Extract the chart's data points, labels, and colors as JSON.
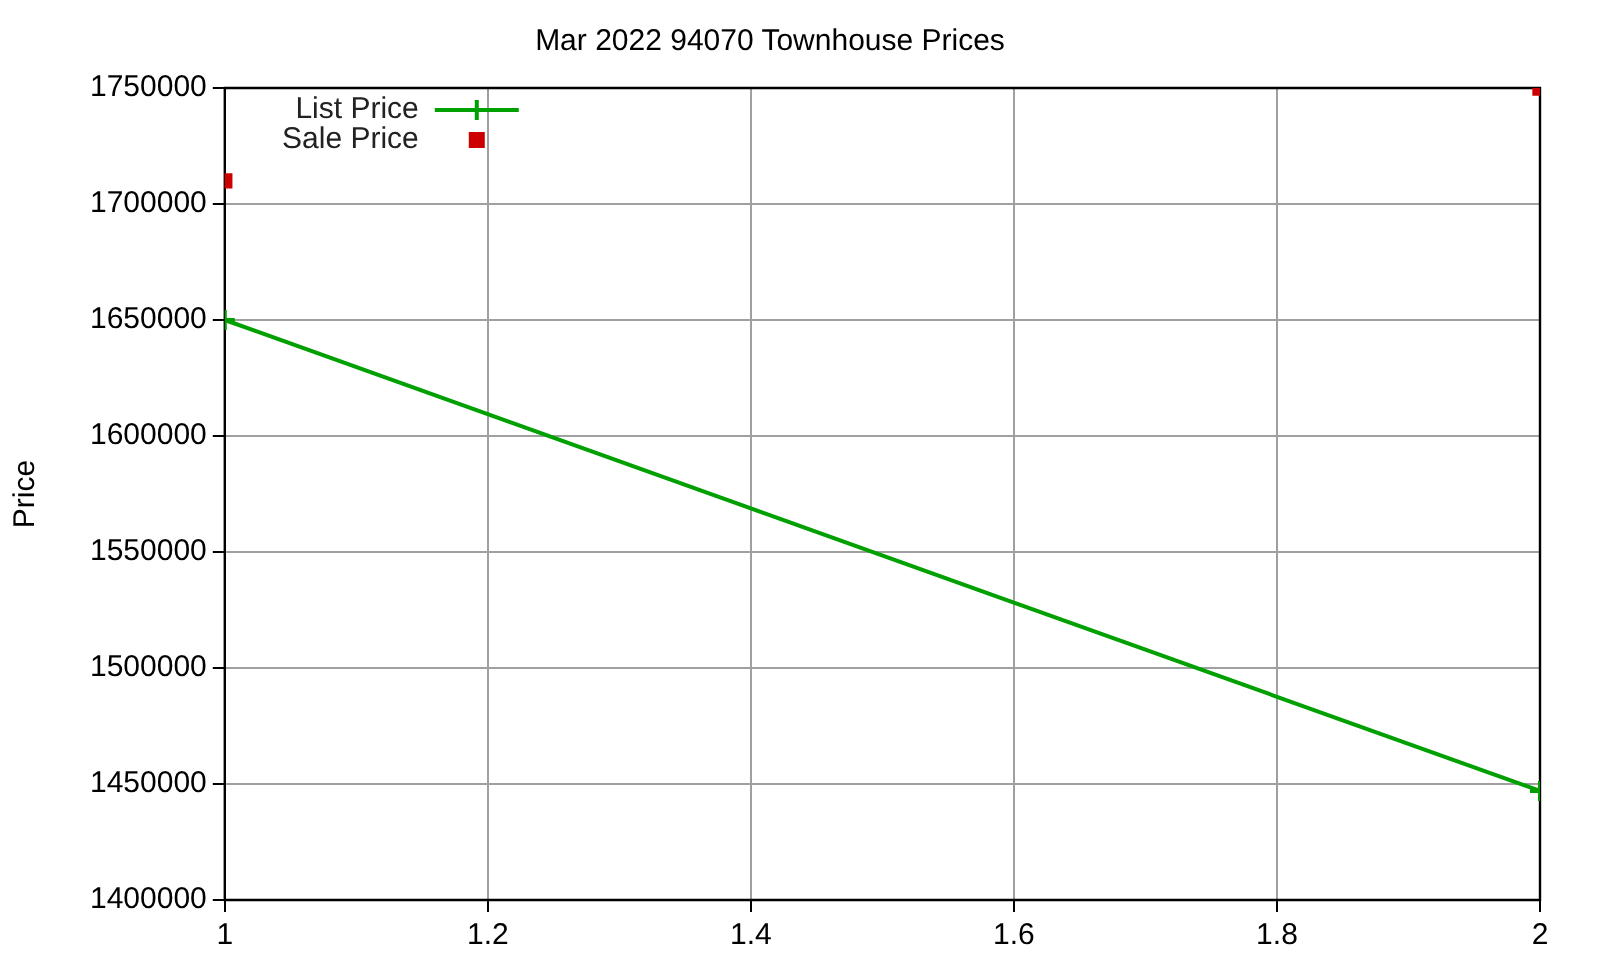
{
  "chart_data": {
    "type": "line",
    "title": "Mar 2022 94070 Townhouse Prices",
    "ylabel": "Price",
    "x": [
      1,
      2
    ],
    "series": [
      {
        "name": "List Price",
        "color": "#00a000",
        "values": [
          1650000,
          1447000
        ],
        "marker": "cross"
      },
      {
        "name": "Sale Price",
        "type": "scatter",
        "color": "#cc0000",
        "values": [
          1710000,
          1750000
        ],
        "marker": "square"
      }
    ],
    "xlim": [
      1,
      2
    ],
    "xticks": [
      1,
      1.2,
      1.4,
      1.6,
      1.8,
      2
    ],
    "ylim": [
      1400000,
      1750000
    ],
    "yticks": [
      1400000,
      1450000,
      1500000,
      1550000,
      1600000,
      1650000,
      1700000,
      1750000
    ],
    "grid": true,
    "legend": "top left"
  }
}
